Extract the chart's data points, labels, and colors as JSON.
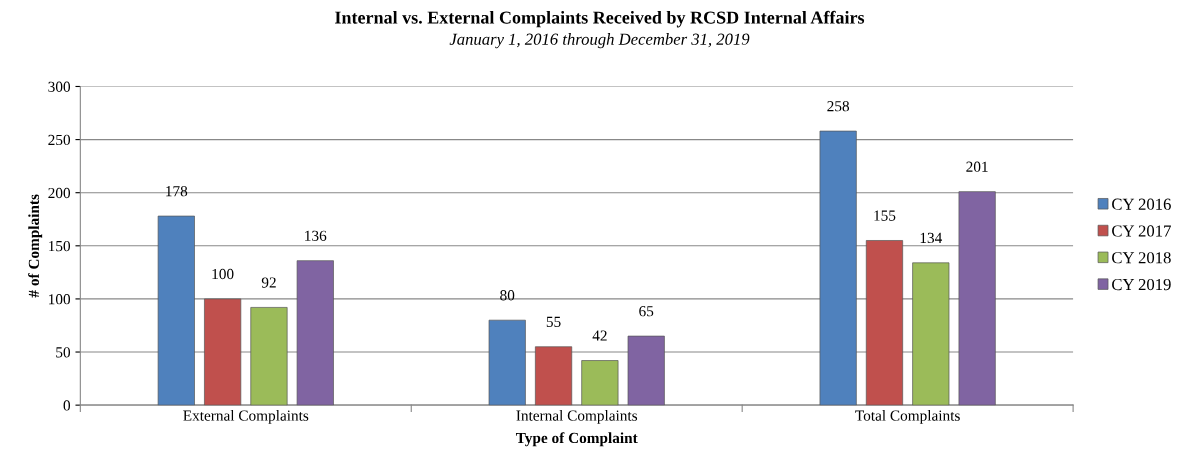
{
  "chart_data": {
    "type": "bar",
    "title": "Internal vs. External Complaints Received by RCSD Internal Affairs",
    "subtitle": "January 1, 2016 through December 31, 2019",
    "xlabel": "Type of Complaint",
    "ylabel": "# of Complaints",
    "categories": [
      "External Complaints",
      "Internal Complaints",
      "Total Complaints"
    ],
    "series": [
      {
        "name": "CY 2016",
        "color": "#4f81bd",
        "values": [
          178,
          80,
          258
        ]
      },
      {
        "name": "CY 2017",
        "color": "#c0504d",
        "values": [
          100,
          55,
          155
        ]
      },
      {
        "name": "CY 2018",
        "color": "#9bbb59",
        "values": [
          92,
          42,
          134
        ]
      },
      {
        "name": "CY 2019",
        "color": "#8064a2",
        "values": [
          136,
          65,
          201
        ]
      }
    ],
    "ylim": [
      0,
      300
    ],
    "yticks": [
      0,
      50,
      100,
      150,
      200,
      250,
      300
    ],
    "grid": "y",
    "legend": "right",
    "data_labels": true
  }
}
